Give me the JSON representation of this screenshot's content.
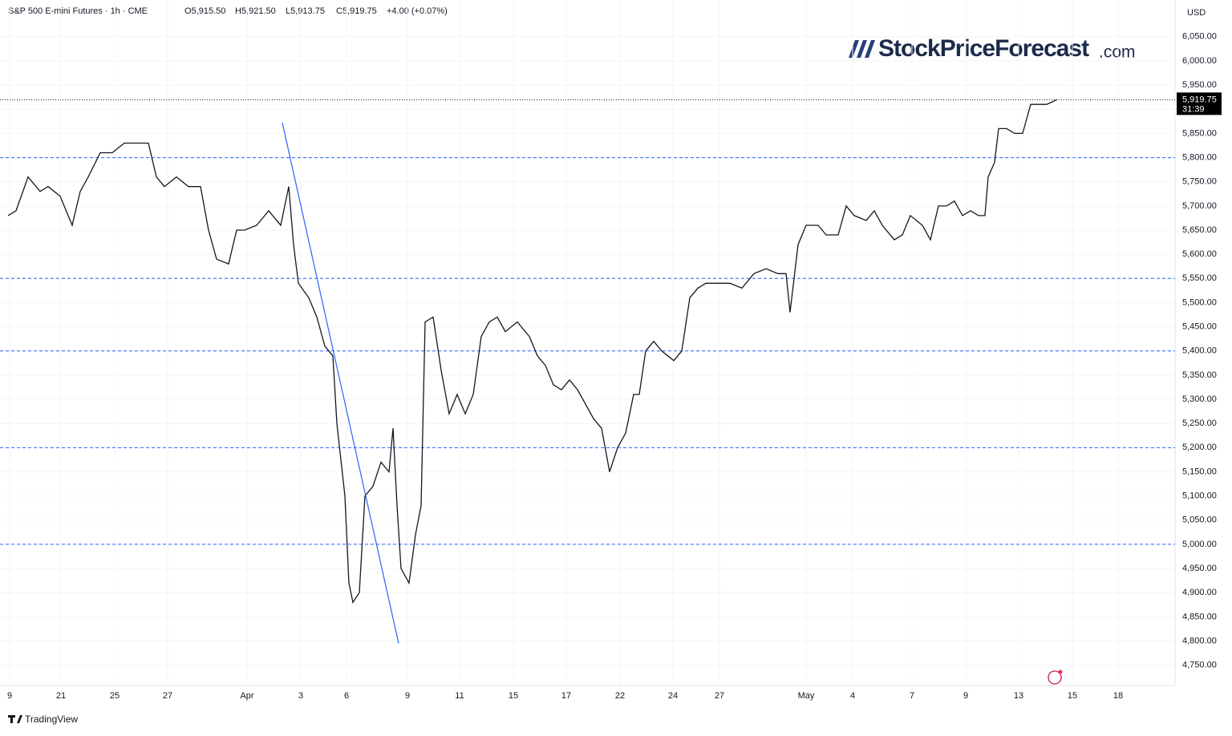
{
  "chart_data": {
    "type": "line",
    "title": "S&P 500 E-mini Futures · 1h · CME",
    "ohlc_labels": [
      "O5,915.50",
      "H5,921.50",
      "L5,913.75",
      "C5,919.75",
      "+4.00 (+0.07%)"
    ],
    "currency": "USD",
    "last_price": {
      "value": 5919.75,
      "label": "5,919.75"
    },
    "countdown": "31:39",
    "color": "#131722",
    "level_color": "#2962ff",
    "levels": [
      5800,
      5550,
      5400,
      5200,
      5000
    ],
    "trendline": {
      "x": [
        342,
        487
      ],
      "y": [
        5872,
        4795
      ]
    },
    "ylim": [
      4708,
      6126
    ],
    "xlim": [
      0,
      1455
    ],
    "yticks": [
      {
        "value": 4750,
        "label": "4,750.00"
      },
      {
        "value": 4800,
        "label": "4,800.00"
      },
      {
        "value": 4850,
        "label": "4,850.00"
      },
      {
        "value": 4900,
        "label": "4,900.00"
      },
      {
        "value": 4950,
        "label": "4,950.00"
      },
      {
        "value": 5000,
        "label": "5,000.00"
      },
      {
        "value": 5050,
        "label": "5,050.00"
      },
      {
        "value": 5100,
        "label": "5,100.00"
      },
      {
        "value": 5150,
        "label": "5,150.00"
      },
      {
        "value": 5200,
        "label": "5,200.00"
      },
      {
        "value": 5250,
        "label": "5,250.00"
      },
      {
        "value": 5300,
        "label": "5,300.00"
      },
      {
        "value": 5350,
        "label": "5,350.00"
      },
      {
        "value": 5400,
        "label": "5,400.00"
      },
      {
        "value": 5450,
        "label": "5,450.00"
      },
      {
        "value": 5500,
        "label": "5,500.00"
      },
      {
        "value": 5550,
        "label": "5,550.00"
      },
      {
        "value": 5600,
        "label": "5,600.00"
      },
      {
        "value": 5650,
        "label": "5,650.00"
      },
      {
        "value": 5700,
        "label": "5,700.00"
      },
      {
        "value": 5750,
        "label": "5,750.00"
      },
      {
        "value": 5800,
        "label": "5,800.00"
      },
      {
        "value": 5850,
        "label": "5,850.00"
      },
      {
        "value": 5900,
        "label": "5,900.00"
      },
      {
        "value": 5950,
        "label": "5,950.00"
      },
      {
        "value": 6000,
        "label": "6,000.00"
      },
      {
        "value": 6050,
        "label": "6,050.00"
      }
    ],
    "xticks": [
      {
        "value": 2,
        "label": "9"
      },
      {
        "value": 66,
        "label": "21"
      },
      {
        "value": 133,
        "label": "25"
      },
      {
        "value": 199,
        "label": "27"
      },
      {
        "value": 298,
        "label": "Apr"
      },
      {
        "value": 365,
        "label": "3"
      },
      {
        "value": 422,
        "label": "6"
      },
      {
        "value": 498,
        "label": "9"
      },
      {
        "value": 563,
        "label": "11"
      },
      {
        "value": 630,
        "label": "15"
      },
      {
        "value": 696,
        "label": "17"
      },
      {
        "value": 763,
        "label": "22"
      },
      {
        "value": 829,
        "label": "24"
      },
      {
        "value": 887,
        "label": "27"
      },
      {
        "value": 995,
        "label": "May"
      },
      {
        "value": 1053,
        "label": "4"
      },
      {
        "value": 1127,
        "label": "7"
      },
      {
        "value": 1194,
        "label": "9"
      },
      {
        "value": 1260,
        "label": "13"
      },
      {
        "value": 1327,
        "label": "15"
      },
      {
        "value": 1384,
        "label": "18"
      }
    ],
    "grid": true,
    "series": [
      {
        "name": "S&P 500 E-mini Futures",
        "color": "#131722",
        "x": [
          0,
          10,
          25,
          40,
          50,
          65,
          80,
          90,
          100,
          115,
          130,
          145,
          160,
          175,
          185,
          195,
          210,
          225,
          240,
          250,
          260,
          275,
          285,
          295,
          310,
          325,
          340,
          350,
          356,
          362,
          375,
          385,
          395,
          405,
          410,
          420,
          425,
          430,
          438,
          445,
          455,
          465,
          475,
          480,
          485,
          490,
          500,
          508,
          515,
          520,
          530,
          540,
          550,
          560,
          570,
          580,
          590,
          600,
          610,
          620,
          635,
          650,
          660,
          670,
          680,
          690,
          700,
          710,
          720,
          730,
          740,
          750,
          760,
          770,
          780,
          787,
          795,
          805,
          815,
          830,
          840,
          850,
          860,
          870,
          885,
          900,
          915,
          930,
          945,
          960,
          970,
          975,
          985,
          995,
          1010,
          1020,
          1035,
          1045,
          1055,
          1070,
          1080,
          1090,
          1105,
          1115,
          1125,
          1140,
          1150,
          1160,
          1170,
          1180,
          1190,
          1200,
          1210,
          1218,
          1222,
          1230,
          1235,
          1245,
          1255,
          1265,
          1275,
          1285,
          1295,
          1308
        ],
        "values": [
          5680,
          5690,
          5760,
          5730,
          5740,
          5720,
          5660,
          5730,
          5760,
          5810,
          5810,
          5830,
          5830,
          5830,
          5760,
          5740,
          5760,
          5740,
          5740,
          5650,
          5590,
          5580,
          5650,
          5650,
          5660,
          5690,
          5660,
          5740,
          5620,
          5540,
          5510,
          5470,
          5410,
          5390,
          5250,
          5100,
          4920,
          4880,
          4900,
          5100,
          5120,
          5170,
          5150,
          5240,
          5080,
          4950,
          4920,
          5020,
          5080,
          5460,
          5470,
          5360,
          5270,
          5310,
          5270,
          5310,
          5430,
          5460,
          5470,
          5440,
          5460,
          5430,
          5390,
          5370,
          5330,
          5320,
          5340,
          5320,
          5290,
          5260,
          5240,
          5150,
          5200,
          5230,
          5310,
          5310,
          5400,
          5420,
          5400,
          5380,
          5400,
          5510,
          5530,
          5540,
          5540,
          5540,
          5530,
          5560,
          5570,
          5560,
          5560,
          5480,
          5620,
          5660,
          5660,
          5640,
          5640,
          5700,
          5680,
          5670,
          5690,
          5660,
          5630,
          5640,
          5680,
          5660,
          5630,
          5700,
          5700,
          5710,
          5680,
          5690,
          5680,
          5680,
          5760,
          5790,
          5860,
          5860,
          5850,
          5850,
          5910,
          5910,
          5910,
          5920
        ]
      }
    ]
  },
  "logo": {
    "name": "StockPriceForecast",
    "suffix": ".com"
  },
  "footer": "TradingView"
}
